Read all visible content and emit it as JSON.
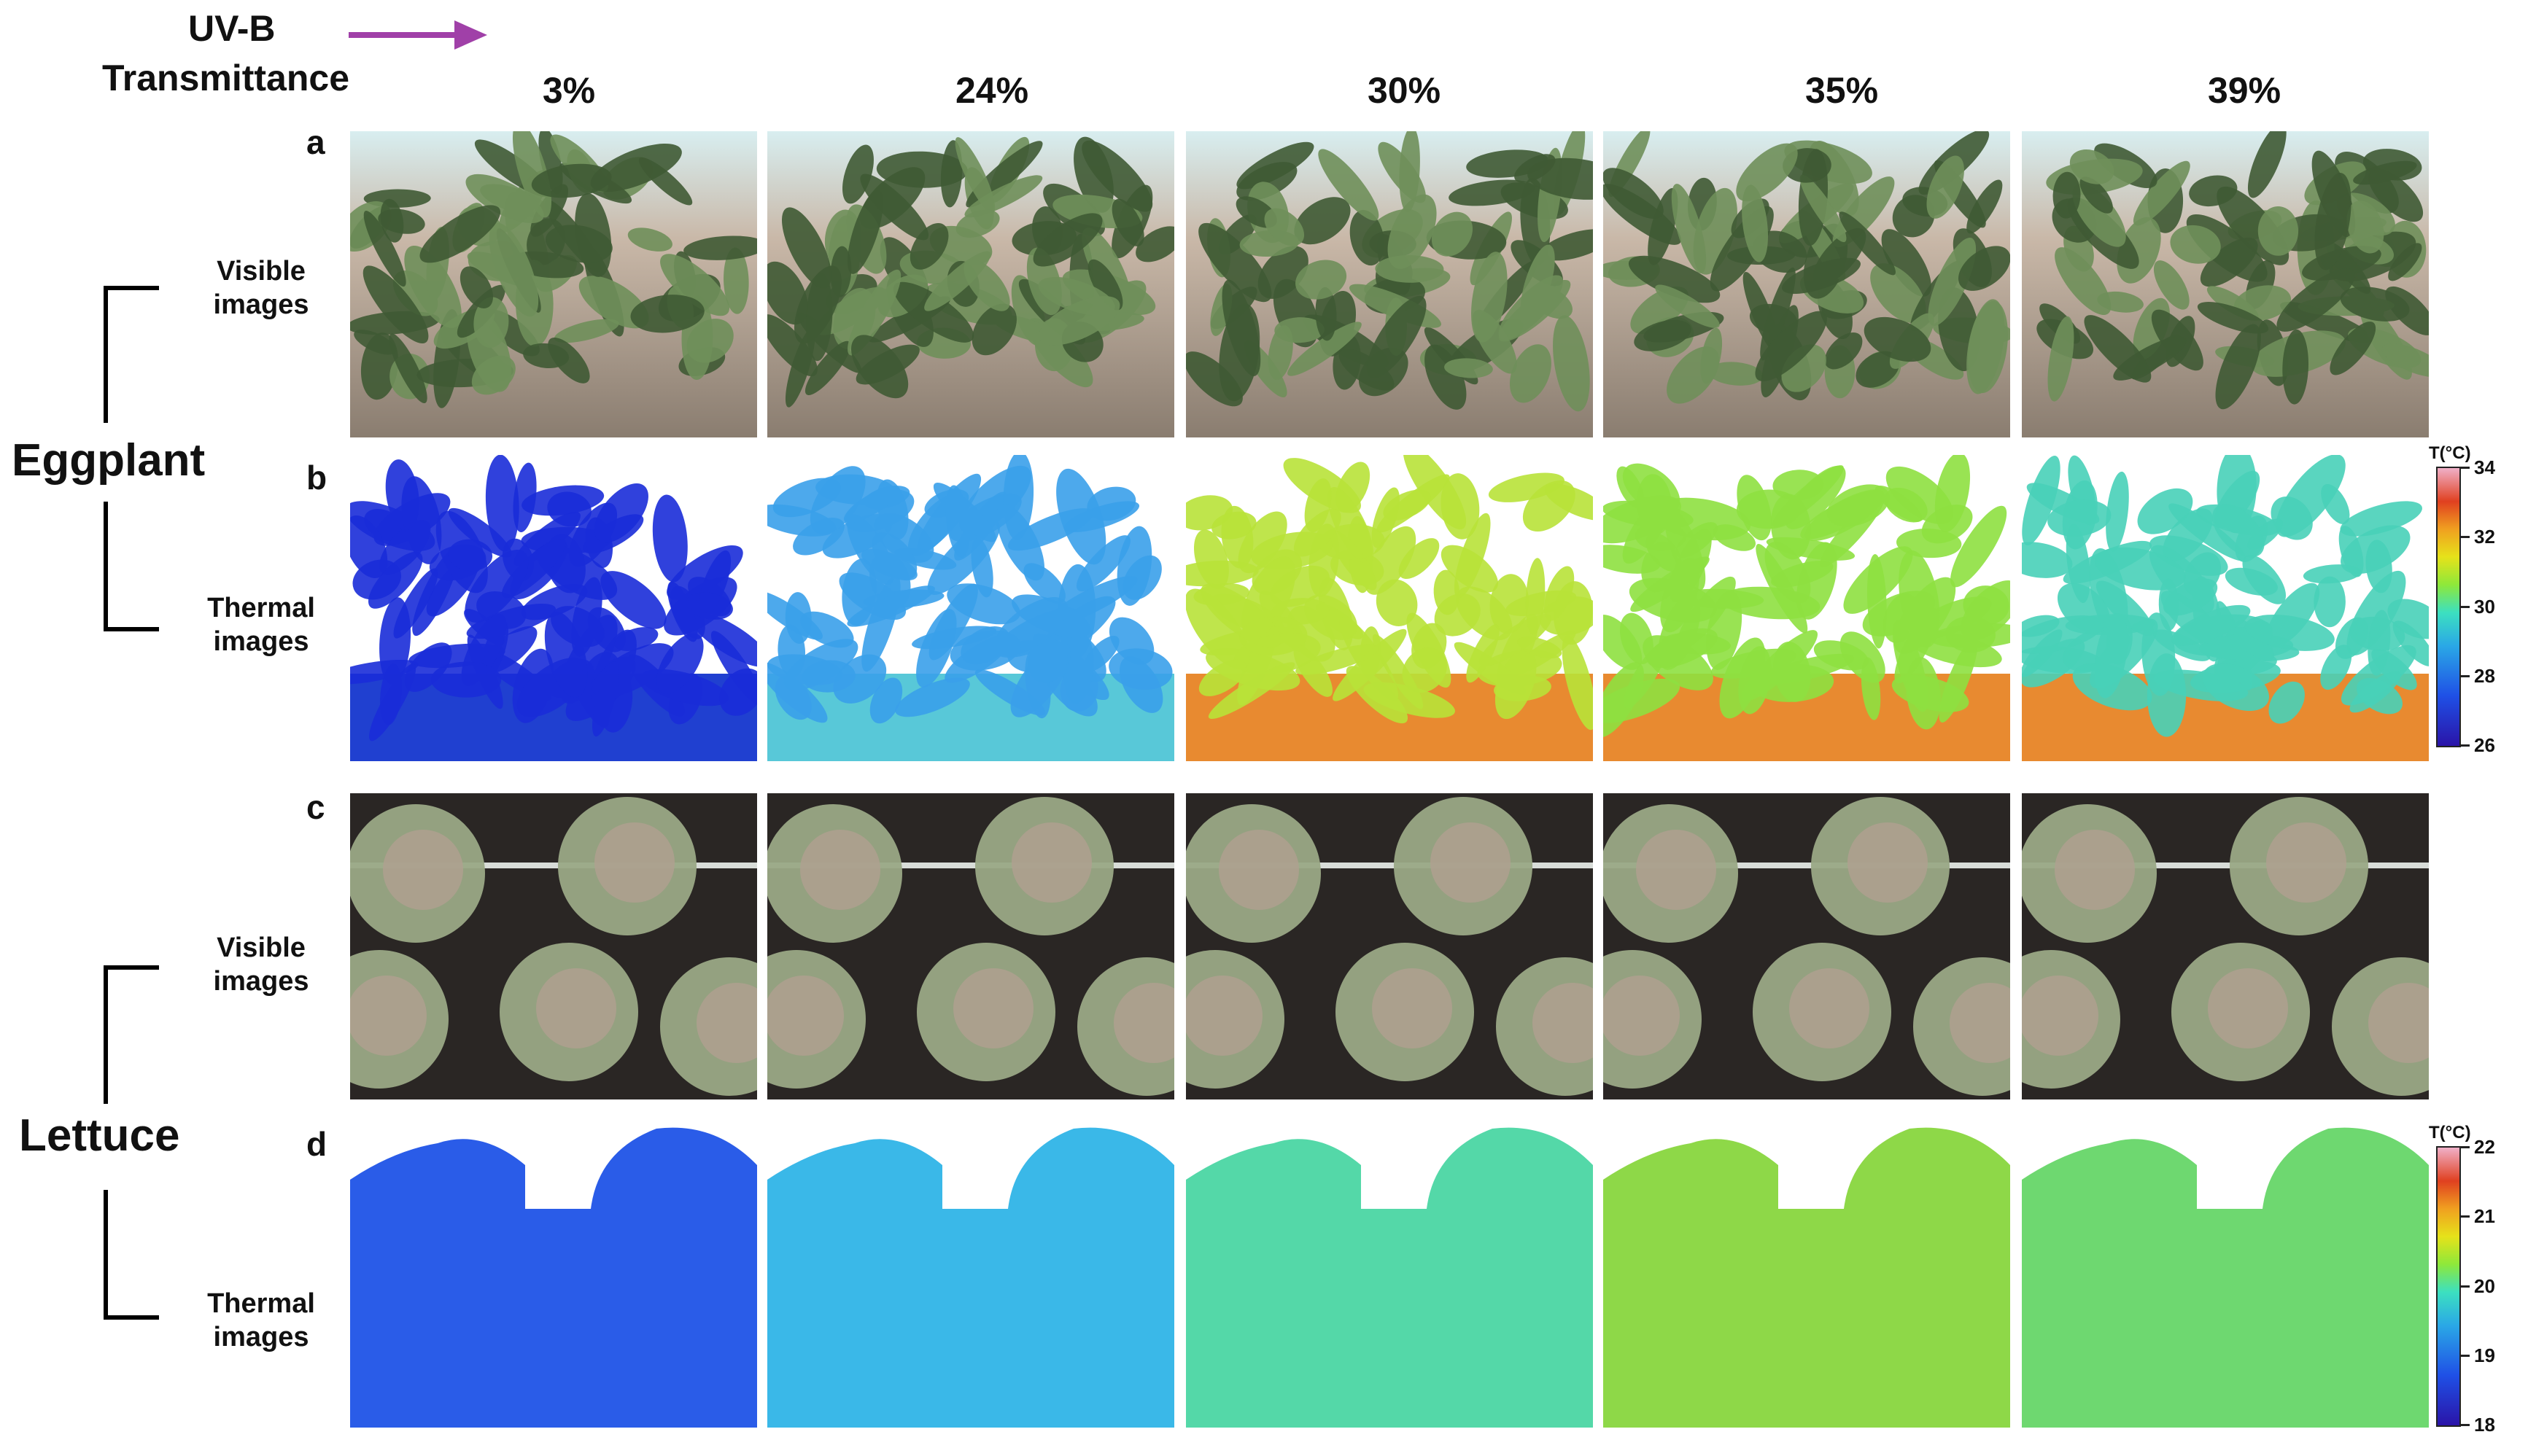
{
  "header": {
    "uvb_label_line1": "UV-B",
    "uvb_label_line2": "Transmittance",
    "arrow_color": "#a040a8",
    "columns": [
      "3%",
      "24%",
      "30%",
      "35%",
      "39%"
    ]
  },
  "rows": {
    "a": {
      "letter": "a",
      "sublabel_line1": "Visible",
      "sublabel_line2": "images"
    },
    "b": {
      "letter": "b",
      "sublabel_line1": "Thermal",
      "sublabel_line2": "images"
    },
    "c": {
      "letter": "c",
      "sublabel_line1": "Visible",
      "sublabel_line2": "images"
    },
    "d": {
      "letter": "d",
      "sublabel_line1": "Thermal",
      "sublabel_line2": "images"
    }
  },
  "species": {
    "eggplant": "Eggplant",
    "lettuce": "Lettuce"
  },
  "colorbars": {
    "eggplant": {
      "title": "T(°C)",
      "ticks": [
        "34",
        "32",
        "30",
        "28",
        "26"
      ]
    },
    "lettuce": {
      "title": "T(°C)",
      "ticks": [
        "22",
        "21",
        "20",
        "19",
        "18"
      ]
    }
  },
  "thermal_tints": {
    "eggplant": [
      "#1a2cd8",
      "#3aa0ea",
      "#b8e238",
      "#8ee040",
      "#48d0b8"
    ],
    "lettuce": [
      "#2a5ce8",
      "#3ab8e8",
      "#54d8a8",
      "#8ed848",
      "#6ed870"
    ]
  }
}
